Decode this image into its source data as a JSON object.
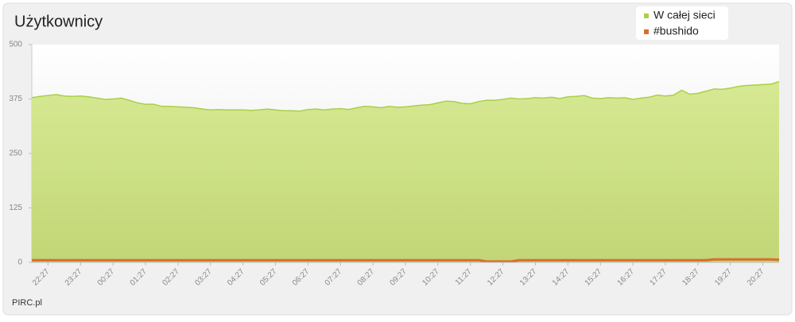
{
  "chart_data": {
    "type": "area",
    "title": "Użytkownicy",
    "footer": "PIRC.pl",
    "categories": [
      null,
      null,
      "22:27",
      null,
      null,
      null,
      "23:27",
      null,
      null,
      null,
      "00:27",
      null,
      null,
      null,
      "01:27",
      null,
      null,
      null,
      "02:27",
      null,
      null,
      null,
      "03:27",
      null,
      null,
      null,
      "04:27",
      null,
      null,
      null,
      "05:27",
      null,
      null,
      null,
      "06:27",
      null,
      null,
      null,
      "07:27",
      null,
      null,
      null,
      "08:27",
      null,
      null,
      null,
      "09:27",
      null,
      null,
      null,
      "10:27",
      null,
      null,
      null,
      "11:27",
      null,
      null,
      null,
      "12:27",
      null,
      null,
      null,
      "13:27",
      null,
      null,
      null,
      "14:27",
      null,
      null,
      null,
      "15:27",
      null,
      null,
      null,
      "16:27",
      null,
      null,
      null,
      "17:27",
      null,
      null,
      null,
      "18:27",
      null,
      null,
      null,
      "19:27",
      null,
      null,
      null,
      "20:27",
      null,
      null
    ],
    "series": [
      {
        "name": "W całej sieci",
        "color": "#a9d046",
        "values": [
          378,
          381,
          383,
          385,
          382,
          381,
          382,
          380,
          377,
          374,
          375,
          377,
          372,
          366,
          363,
          363,
          358,
          358,
          357,
          356,
          355,
          352,
          350,
          351,
          350,
          350,
          350,
          349,
          350,
          352,
          350,
          348,
          348,
          347,
          351,
          352,
          350,
          352,
          353,
          351,
          355,
          358,
          357,
          355,
          358,
          356,
          357,
          359,
          361,
          362,
          366,
          370,
          369,
          365,
          364,
          369,
          372,
          372,
          374,
          377,
          375,
          376,
          378,
          377,
          379,
          376,
          380,
          381,
          383,
          377,
          376,
          378,
          377,
          378,
          374,
          377,
          379,
          384,
          382,
          384,
          395,
          386,
          388,
          393,
          398,
          397,
          400,
          404,
          406,
          407,
          408,
          409,
          415
        ]
      },
      {
        "name": "#bushido",
        "color": "#d96d2f",
        "values": [
          5,
          5,
          5,
          5,
          5,
          5,
          5,
          5,
          5,
          5,
          5,
          5,
          5,
          5,
          5,
          5,
          5,
          5,
          5,
          5,
          5,
          5,
          5,
          5,
          5,
          5,
          5,
          5,
          5,
          5,
          5,
          5,
          5,
          5,
          5,
          5,
          5,
          5,
          5,
          5,
          5,
          5,
          5,
          5,
          5,
          5,
          5,
          5,
          5,
          5,
          5,
          5,
          5,
          5,
          5,
          5,
          2,
          2,
          2,
          2,
          5,
          5,
          5,
          5,
          5,
          5,
          5,
          5,
          5,
          5,
          5,
          5,
          5,
          5,
          5,
          5,
          5,
          5,
          5,
          5,
          5,
          5,
          5,
          5,
          7,
          7,
          7,
          7,
          7,
          7,
          7,
          7,
          6
        ]
      }
    ],
    "ylim": [
      0,
      500
    ],
    "yticks": [
      0,
      125,
      250,
      375,
      500
    ],
    "legend": "top-right"
  }
}
